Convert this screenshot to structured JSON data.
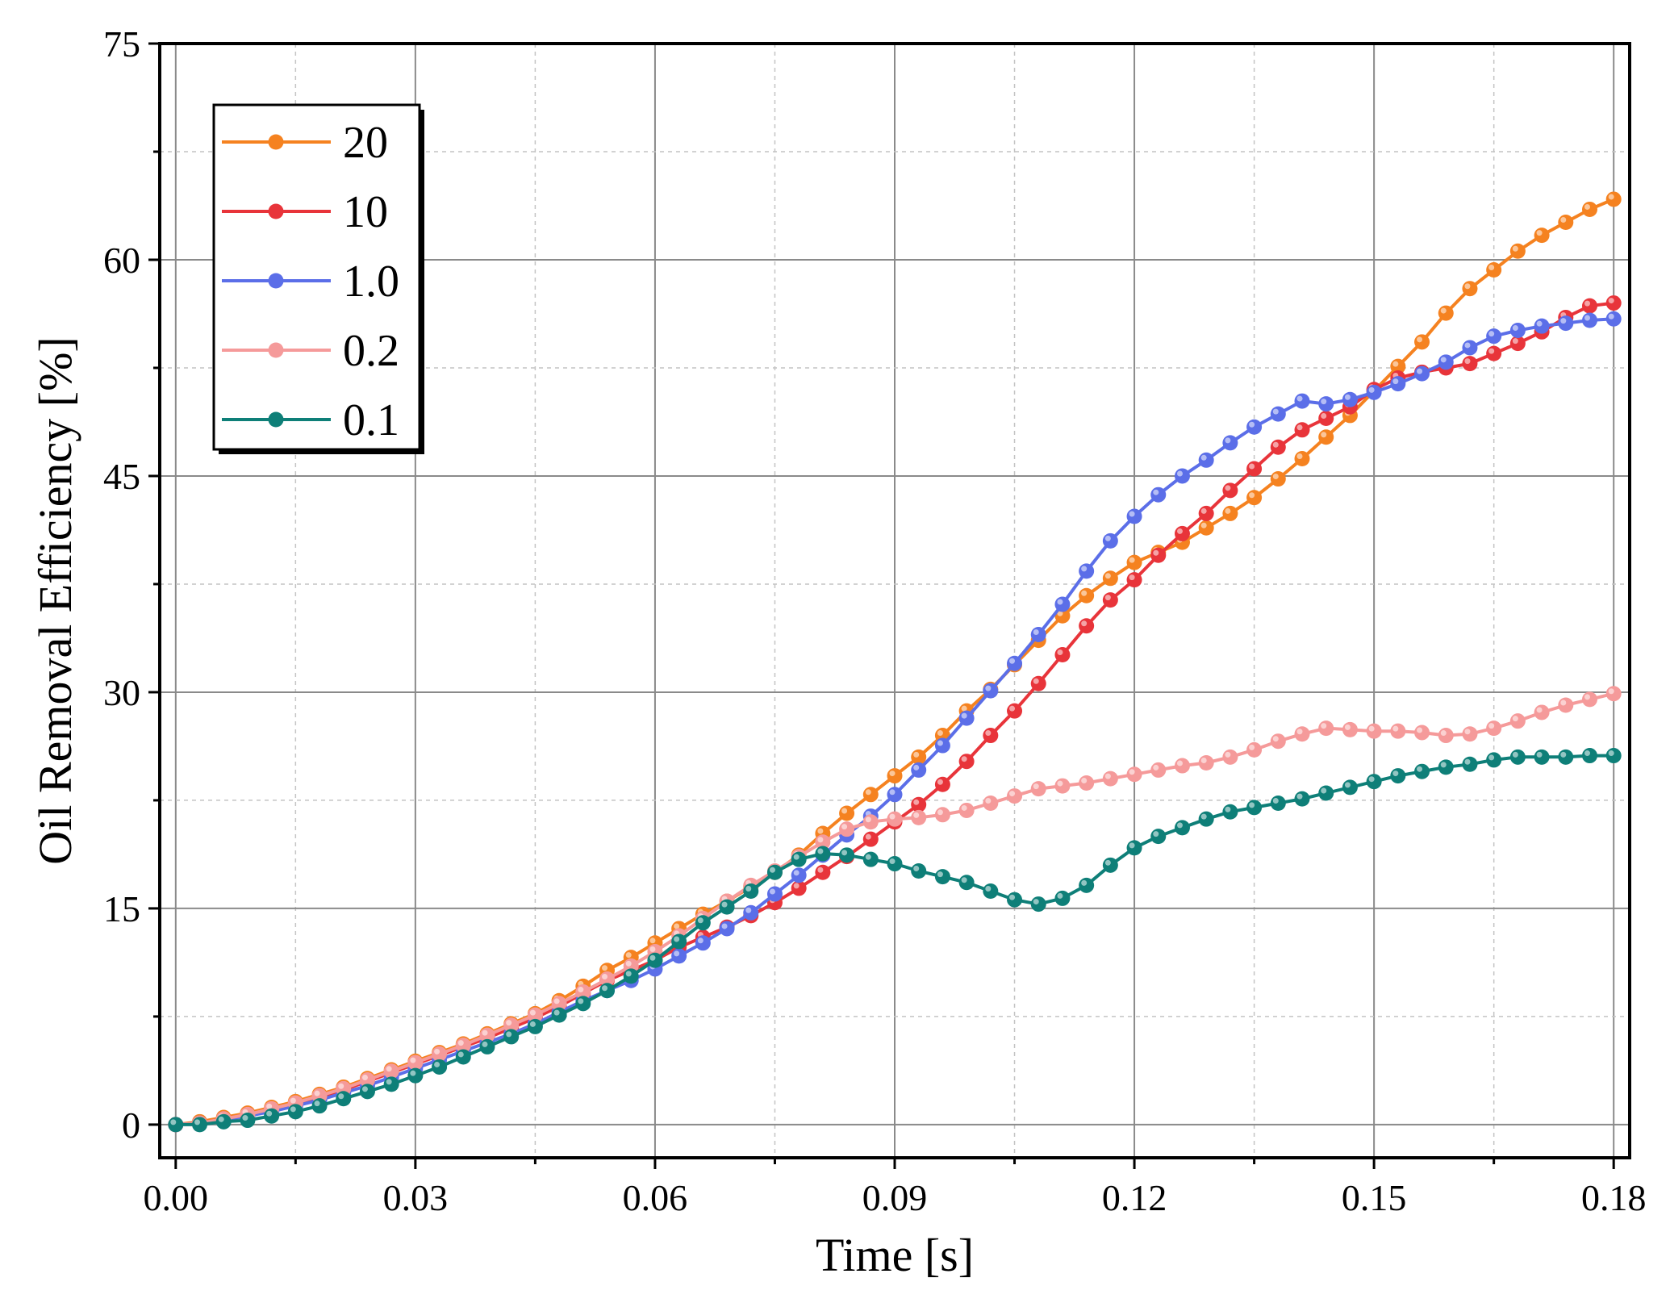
{
  "chart_data": {
    "type": "line",
    "title": "",
    "xlabel": "Time [s]",
    "ylabel": "Oil Removal Efficiency [%]",
    "xlim": [
      -0.002,
      0.182
    ],
    "ylim": [
      -2.3,
      75
    ],
    "xticks": [
      0.0,
      0.03,
      0.06,
      0.09,
      0.12,
      0.15,
      0.18
    ],
    "xtick_labels": [
      "0.00",
      "0.03",
      "0.06",
      "0.09",
      "0.12",
      "0.15",
      "0.18"
    ],
    "yticks": [
      0,
      15,
      30,
      45,
      60,
      75
    ],
    "ytick_labels": [
      "0",
      "15",
      "30",
      "45",
      "60",
      "75"
    ],
    "grid": true,
    "legend_position": "top-left",
    "series": [
      {
        "name": "20",
        "color": "#f58220",
        "x": [
          0.0,
          0.003,
          0.006,
          0.009,
          0.012,
          0.015,
          0.018,
          0.021,
          0.024,
          0.027,
          0.03,
          0.033,
          0.036,
          0.039,
          0.042,
          0.045,
          0.048,
          0.051,
          0.054,
          0.057,
          0.06,
          0.063,
          0.066,
          0.069,
          0.072,
          0.075,
          0.078,
          0.081,
          0.084,
          0.087,
          0.09,
          0.093,
          0.096,
          0.099,
          0.102,
          0.105,
          0.108,
          0.111,
          0.114,
          0.117,
          0.12,
          0.123,
          0.126,
          0.129,
          0.132,
          0.135,
          0.138,
          0.141,
          0.144,
          0.147,
          0.15,
          0.153,
          0.156,
          0.159,
          0.162,
          0.165,
          0.168,
          0.171,
          0.174,
          0.177,
          0.18
        ],
        "y": [
          0.0,
          0.2,
          0.5,
          0.8,
          1.2,
          1.6,
          2.1,
          2.6,
          3.2,
          3.8,
          4.4,
          5.0,
          5.6,
          6.3,
          7.0,
          7.7,
          8.6,
          9.6,
          10.7,
          11.6,
          12.6,
          13.6,
          14.6,
          15.5,
          16.5,
          17.5,
          18.7,
          20.2,
          21.6,
          22.9,
          24.2,
          25.5,
          27.0,
          28.7,
          30.2,
          31.9,
          33.6,
          35.3,
          36.7,
          37.9,
          39.0,
          39.7,
          40.4,
          41.4,
          42.4,
          43.5,
          44.8,
          46.2,
          47.7,
          49.2,
          50.9,
          52.6,
          54.3,
          56.3,
          58.0,
          59.3,
          60.6,
          61.7,
          62.6,
          63.5,
          64.2
        ]
      },
      {
        "name": "10",
        "color": "#e8343a",
        "x": [
          0.0,
          0.003,
          0.006,
          0.009,
          0.012,
          0.015,
          0.018,
          0.021,
          0.024,
          0.027,
          0.03,
          0.033,
          0.036,
          0.039,
          0.042,
          0.045,
          0.048,
          0.051,
          0.054,
          0.057,
          0.06,
          0.063,
          0.066,
          0.069,
          0.072,
          0.075,
          0.078,
          0.081,
          0.084,
          0.087,
          0.09,
          0.093,
          0.096,
          0.099,
          0.102,
          0.105,
          0.108,
          0.111,
          0.114,
          0.117,
          0.12,
          0.123,
          0.126,
          0.129,
          0.132,
          0.135,
          0.138,
          0.141,
          0.144,
          0.147,
          0.15,
          0.153,
          0.156,
          0.159,
          0.162,
          0.165,
          0.168,
          0.171,
          0.174,
          0.177,
          0.18
        ],
        "y": [
          0.0,
          0.1,
          0.4,
          0.7,
          1.0,
          1.4,
          1.9,
          2.4,
          3.0,
          3.6,
          4.2,
          4.8,
          5.4,
          6.0,
          6.7,
          7.4,
          8.2,
          9.1,
          10.0,
          10.7,
          11.4,
          12.3,
          13.0,
          13.7,
          14.5,
          15.4,
          16.4,
          17.5,
          18.6,
          19.8,
          21.0,
          22.2,
          23.6,
          25.2,
          27.0,
          28.7,
          30.6,
          32.6,
          34.6,
          36.4,
          37.8,
          39.5,
          41.0,
          42.4,
          44.0,
          45.5,
          47.0,
          48.2,
          49.0,
          49.8,
          51.0,
          51.8,
          52.2,
          52.5,
          52.8,
          53.5,
          54.2,
          55.0,
          56.0,
          56.8,
          57.0
        ]
      },
      {
        "name": "1.0",
        "color": "#5b6ee8",
        "x": [
          0.0,
          0.003,
          0.006,
          0.009,
          0.012,
          0.015,
          0.018,
          0.021,
          0.024,
          0.027,
          0.03,
          0.033,
          0.036,
          0.039,
          0.042,
          0.045,
          0.048,
          0.051,
          0.054,
          0.057,
          0.06,
          0.063,
          0.066,
          0.069,
          0.072,
          0.075,
          0.078,
          0.081,
          0.084,
          0.087,
          0.09,
          0.093,
          0.096,
          0.099,
          0.102,
          0.105,
          0.108,
          0.111,
          0.114,
          0.117,
          0.12,
          0.123,
          0.126,
          0.129,
          0.132,
          0.135,
          0.138,
          0.141,
          0.144,
          0.147,
          0.15,
          0.153,
          0.156,
          0.159,
          0.162,
          0.165,
          0.168,
          0.171,
          0.174,
          0.177,
          0.18
        ],
        "y": [
          0.0,
          0.1,
          0.3,
          0.6,
          0.9,
          1.3,
          1.7,
          2.2,
          2.7,
          3.3,
          3.9,
          4.5,
          5.1,
          5.7,
          6.3,
          7.0,
          7.8,
          8.6,
          9.3,
          10.0,
          10.8,
          11.7,
          12.6,
          13.6,
          14.7,
          16.0,
          17.3,
          18.7,
          20.1,
          21.4,
          22.9,
          24.6,
          26.3,
          28.2,
          30.1,
          32.0,
          34.0,
          36.1,
          38.4,
          40.5,
          42.2,
          43.7,
          45.0,
          46.1,
          47.3,
          48.4,
          49.3,
          50.2,
          50.0,
          50.3,
          50.8,
          51.4,
          52.1,
          52.9,
          53.9,
          54.7,
          55.1,
          55.4,
          55.6,
          55.8,
          55.9
        ]
      },
      {
        "name": "0.2",
        "color": "#f59a9a",
        "x": [
          0.0,
          0.003,
          0.006,
          0.009,
          0.012,
          0.015,
          0.018,
          0.021,
          0.024,
          0.027,
          0.03,
          0.033,
          0.036,
          0.039,
          0.042,
          0.045,
          0.048,
          0.051,
          0.054,
          0.057,
          0.06,
          0.063,
          0.066,
          0.069,
          0.072,
          0.075,
          0.078,
          0.081,
          0.084,
          0.087,
          0.09,
          0.093,
          0.096,
          0.099,
          0.102,
          0.105,
          0.108,
          0.111,
          0.114,
          0.117,
          0.12,
          0.123,
          0.126,
          0.129,
          0.132,
          0.135,
          0.138,
          0.141,
          0.144,
          0.147,
          0.15,
          0.153,
          0.156,
          0.159,
          0.162,
          0.165,
          0.168,
          0.171,
          0.174,
          0.177,
          0.18
        ],
        "y": [
          0.0,
          0.1,
          0.4,
          0.7,
          1.1,
          1.5,
          2.0,
          2.5,
          3.1,
          3.7,
          4.3,
          4.9,
          5.5,
          6.2,
          6.9,
          7.6,
          8.4,
          9.2,
          10.1,
          11.0,
          12.0,
          13.1,
          14.3,
          15.5,
          16.6,
          17.6,
          18.6,
          19.6,
          20.5,
          21.0,
          21.2,
          21.3,
          21.5,
          21.8,
          22.3,
          22.8,
          23.3,
          23.5,
          23.7,
          24.0,
          24.3,
          24.6,
          24.9,
          25.1,
          25.5,
          26.0,
          26.6,
          27.1,
          27.5,
          27.4,
          27.3,
          27.3,
          27.2,
          27.0,
          27.1,
          27.5,
          28.0,
          28.6,
          29.1,
          29.5,
          29.9
        ]
      },
      {
        "name": "0.1",
        "color": "#0e7f78",
        "x": [
          0.0,
          0.003,
          0.006,
          0.009,
          0.012,
          0.015,
          0.018,
          0.021,
          0.024,
          0.027,
          0.03,
          0.033,
          0.036,
          0.039,
          0.042,
          0.045,
          0.048,
          0.051,
          0.054,
          0.057,
          0.06,
          0.063,
          0.066,
          0.069,
          0.072,
          0.075,
          0.078,
          0.081,
          0.084,
          0.087,
          0.09,
          0.093,
          0.096,
          0.099,
          0.102,
          0.105,
          0.108,
          0.111,
          0.114,
          0.117,
          0.12,
          0.123,
          0.126,
          0.129,
          0.132,
          0.135,
          0.138,
          0.141,
          0.144,
          0.147,
          0.15,
          0.153,
          0.156,
          0.159,
          0.162,
          0.165,
          0.168,
          0.171,
          0.174,
          0.177,
          0.18
        ],
        "y": [
          0.0,
          0.0,
          0.2,
          0.3,
          0.6,
          0.9,
          1.3,
          1.8,
          2.3,
          2.8,
          3.4,
          4.0,
          4.7,
          5.4,
          6.1,
          6.8,
          7.6,
          8.4,
          9.3,
          10.3,
          11.4,
          12.7,
          14.0,
          15.1,
          16.2,
          17.5,
          18.4,
          18.8,
          18.7,
          18.4,
          18.1,
          17.6,
          17.2,
          16.8,
          16.2,
          15.6,
          15.3,
          15.7,
          16.6,
          18.0,
          19.2,
          20.0,
          20.6,
          21.2,
          21.7,
          22.0,
          22.3,
          22.6,
          23.0,
          23.4,
          23.8,
          24.2,
          24.5,
          24.8,
          25.0,
          25.3,
          25.5,
          25.5,
          25.5,
          25.6,
          25.6
        ]
      }
    ]
  }
}
